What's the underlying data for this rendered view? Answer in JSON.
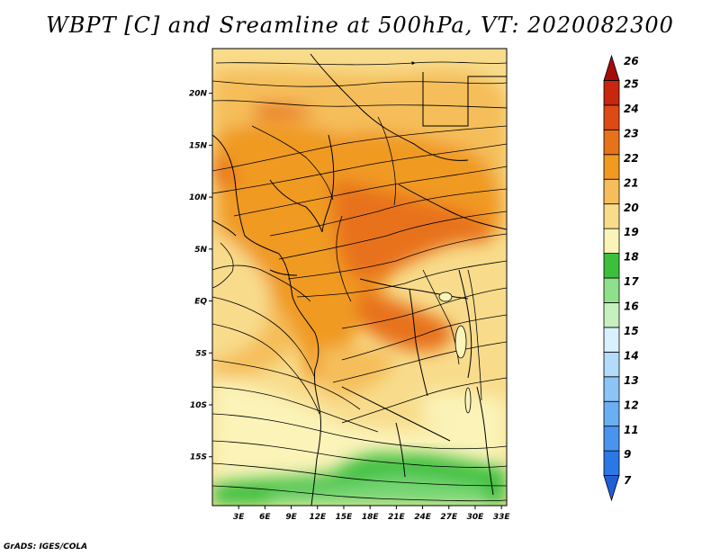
{
  "title": "WBPT [C] and Sreamline at 500hPa, VT: 2020082300",
  "credit": "GrADS: IGES/COLA",
  "map": {
    "lat_range": [
      -19.7,
      24.3
    ],
    "lon_range": [
      0,
      33.6
    ],
    "lat_labels": [
      "20N",
      "15N",
      "10N",
      "5N",
      "EQ",
      "5S",
      "10S",
      "15S"
    ],
    "lat_values": [
      20,
      15,
      10,
      5,
      0,
      -5,
      -10,
      -15
    ],
    "lon_labels": [
      "3E",
      "6E",
      "9E",
      "12E",
      "15E",
      "18E",
      "21E",
      "24E",
      "27E",
      "30E",
      "33E"
    ],
    "lon_values": [
      3,
      6,
      9,
      12,
      15,
      18,
      21,
      24,
      27,
      30,
      33
    ]
  },
  "colorbar": {
    "labels": [
      "7",
      "9",
      "11",
      "12",
      "13",
      "14",
      "15",
      "16",
      "17",
      "18",
      "19",
      "20",
      "21",
      "22",
      "23",
      "24",
      "25",
      "26"
    ],
    "colors": [
      "#1f5fd6",
      "#2b78e4",
      "#4a94ee",
      "#6aaef4",
      "#8cc4f8",
      "#b3dcfb",
      "#d8f0ff",
      "#c6f0c0",
      "#8ee08a",
      "#3cbf3c",
      "#fbf3b8",
      "#f8dc8c",
      "#f5be5a",
      "#f09a22",
      "#e8721a",
      "#dd4a14",
      "#c8260e",
      "#a40c08"
    ]
  }
}
